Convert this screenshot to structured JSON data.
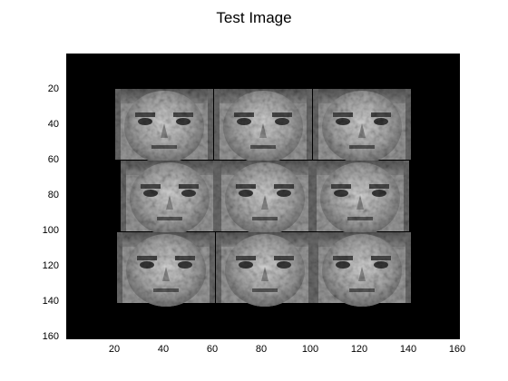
{
  "title": "Test Image",
  "image": {
    "description_semantic": "3x3 grid of grayscale face photographs on a black background",
    "x_axis": {
      "range": [
        0,
        160
      ],
      "ticks": [
        "20",
        "40",
        "60",
        "80",
        "100",
        "120",
        "140",
        "160"
      ]
    },
    "y_axis": {
      "range": [
        0,
        160
      ],
      "ticks": [
        "20",
        "40",
        "60",
        "80",
        "100",
        "120",
        "140",
        "160"
      ],
      "reversed": true
    },
    "grid": "3x3",
    "background_color": "#000000",
    "tile_tone": "#8f8f8f"
  }
}
